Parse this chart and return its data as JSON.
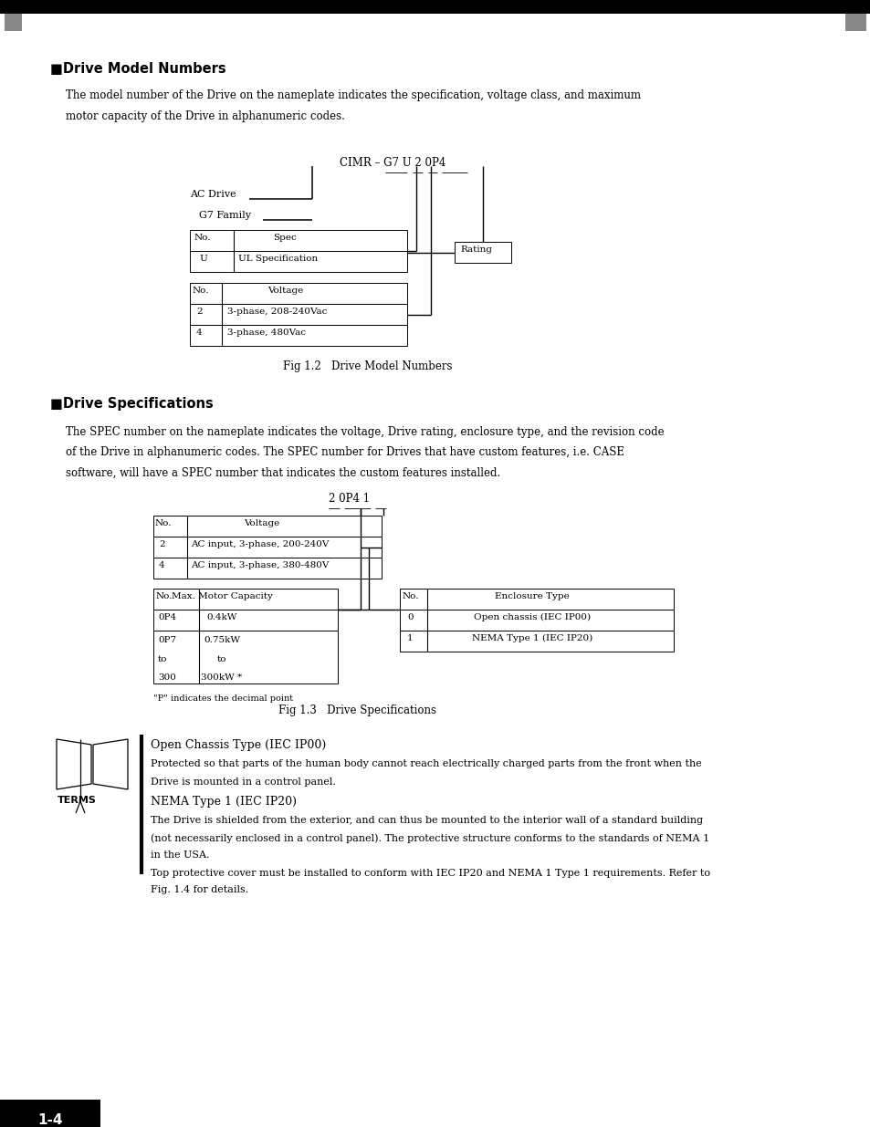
{
  "bg_color": "#ffffff",
  "page_width": 9.54,
  "page_height": 12.35,
  "header_bar_color": "#000000",
  "header_gray_color": "#808080",
  "section1_title": "■Drive Model Numbers",
  "fig1_caption": "Fig 1.2   Drive Model Numbers",
  "section2_title": "■Drive Specifications",
  "section2_body1": "The SPEC number on the nameplate indicates the voltage, Drive rating, enclosure type, and the revision code",
  "section2_body2": "of the Drive in alphanumeric codes. The SPEC number for Drives that have custom features, i.e. CASE",
  "section2_body3": "software, will have a SPEC number that indicates the custom features installed.",
  "fig2_caption": "Fig 1.3   Drive Specifications",
  "terms_title1": "Open Chassis Type (IEC IP00)",
  "terms_body1a": "Protected so that parts of the human body cannot reach electrically charged parts from the front when the",
  "terms_body1b": "Drive is mounted in a control panel.",
  "terms_title2": "NEMA Type 1 (IEC IP20)",
  "terms_body2a": "The Drive is shielded from the exterior, and can thus be mounted to the interior wall of a standard building",
  "terms_body2b": "(not necessarily enclosed in a control panel). The protective structure conforms to the standards of NEMA 1",
  "terms_body2c": "in the USA.",
  "terms_body2d": "Top protective cover must be installed to conform with IEC IP20 and NEMA 1 Type 1 requirements. Refer to",
  "terms_body2e": "Fig. 1.4 for details.",
  "page_label": "1-4"
}
